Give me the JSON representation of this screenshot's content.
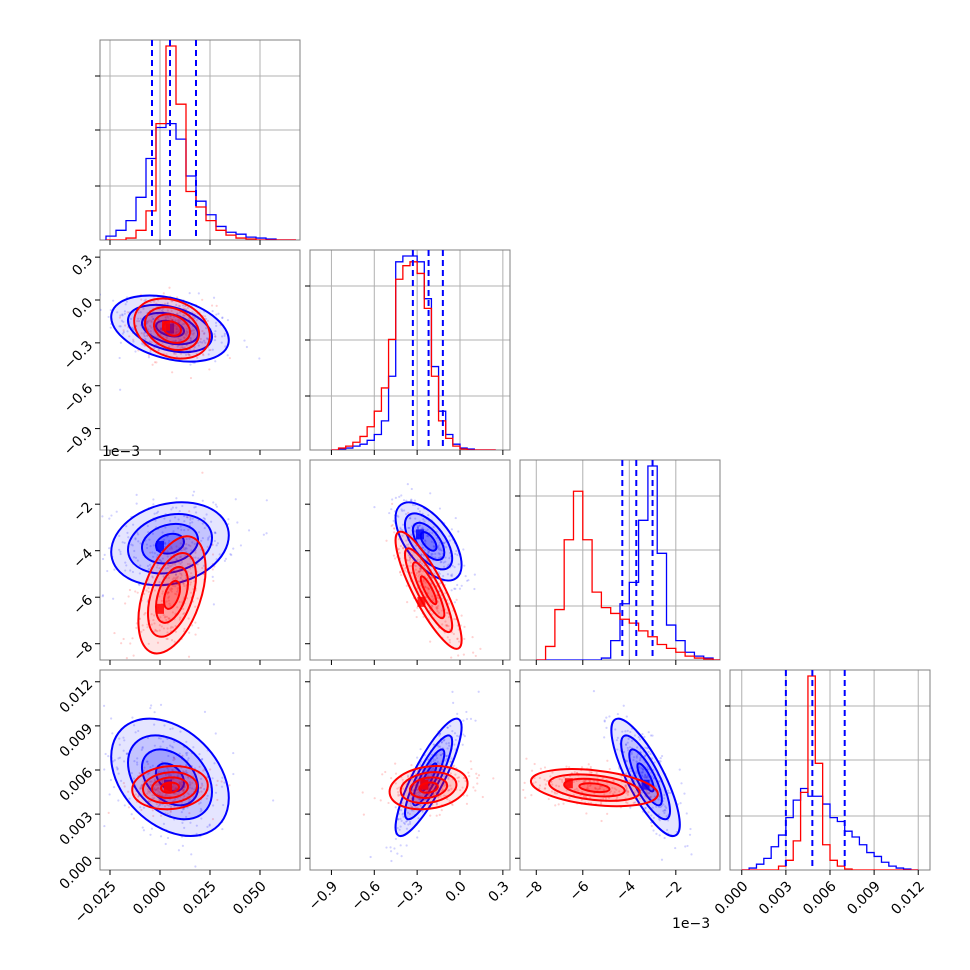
{
  "colors": {
    "blue": "#0000ff",
    "red": "#ff0000",
    "grid": "#b0b0b0",
    "frame": "#808080"
  },
  "chart_data": {
    "type": "corner",
    "title": "",
    "parameters": [
      {
        "key": "p1",
        "range": [
          -0.03,
          0.07
        ],
        "ticks": [
          -0.025,
          0.0,
          0.025,
          0.05
        ],
        "tick_labels": [
          "−0.025",
          "0.000",
          "0.025",
          "0.050"
        ],
        "offset": ""
      },
      {
        "key": "p2",
        "range": [
          -1.05,
          0.35
        ],
        "ticks": [
          -0.9,
          -0.6,
          -0.3,
          0.0,
          0.3
        ],
        "tick_labels": [
          "−0.9",
          "−0.6",
          "−0.3",
          "0.0",
          "0.3"
        ],
        "offset": ""
      },
      {
        "key": "p3",
        "range": [
          -8.7,
          -0.1
        ],
        "ticks": [
          -8,
          -6,
          -4,
          -2
        ],
        "tick_labels": [
          "−8",
          "−6",
          "−4",
          "−2"
        ],
        "offset": "1e−3"
      },
      {
        "key": "p4",
        "range": [
          -0.0008,
          0.0128
        ],
        "ticks": [
          0.0,
          0.003,
          0.006,
          0.009,
          0.012
        ],
        "tick_labels": [
          "0.000",
          "0.003",
          "0.006",
          "0.009",
          "0.012"
        ],
        "offset": ""
      }
    ],
    "series": [
      {
        "color": "#0000ff",
        "means": [
          0.005,
          -0.22,
          -3.7,
          0.0048
        ],
        "sigmas": [
          0.014,
          0.11,
          0.85,
          0.0019
        ],
        "quantiles": [
          [
            -0.004,
            0.005,
            0.018
          ],
          [
            -0.33,
            -0.22,
            -0.12
          ],
          [
            -4.3,
            -3.7,
            -3.0
          ],
          [
            0.003,
            0.0048,
            0.007
          ]
        ]
      },
      {
        "color": "#ff0000",
        "means": [
          0.006,
          -0.2,
          -5.6,
          0.0047
        ],
        "sigmas": [
          0.009,
          0.1,
          1.3,
          0.0007
        ]
      }
    ],
    "histograms": [
      {
        "param": "p1",
        "bins": [
          -0.027,
          -0.022,
          -0.017,
          -0.012,
          -0.007,
          -0.002,
          0.003,
          0.008,
          0.013,
          0.018,
          0.023,
          0.028,
          0.033,
          0.038,
          0.043,
          0.048,
          0.053,
          0.058,
          0.063,
          0.068
        ],
        "blue": [
          0.02,
          0.05,
          0.1,
          0.22,
          0.42,
          0.58,
          0.6,
          0.52,
          0.33,
          0.2,
          0.13,
          0.07,
          0.04,
          0.03,
          0.015,
          0.01,
          0.005,
          0,
          0
        ],
        "red": [
          0,
          0,
          0.01,
          0.05,
          0.15,
          0.6,
          1.0,
          0.7,
          0.25,
          0.17,
          0.1,
          0.05,
          0.025,
          0.01,
          0.005,
          0,
          0,
          0,
          0
        ]
      },
      {
        "param": "p2",
        "bins": [
          -0.9,
          -0.85,
          -0.8,
          -0.75,
          -0.7,
          -0.65,
          -0.6,
          -0.55,
          -0.5,
          -0.45,
          -0.4,
          -0.35,
          -0.3,
          -0.25,
          -0.2,
          -0.15,
          -0.1,
          -0.05,
          0.0,
          0.05,
          0.1,
          0.15,
          0.2,
          0.25
        ],
        "blue": [
          0,
          0.005,
          0.01,
          0.02,
          0.03,
          0.05,
          0.08,
          0.15,
          0.38,
          0.97,
          1.0,
          1.0,
          0.97,
          0.78,
          0.43,
          0.2,
          0.08,
          0.03,
          0.01,
          0.005,
          0,
          0,
          0
        ],
        "red": [
          0,
          0.01,
          0.02,
          0.04,
          0.07,
          0.12,
          0.2,
          0.32,
          0.57,
          0.88,
          0.95,
          0.97,
          0.91,
          0.73,
          0.38,
          0.15,
          0.06,
          0.02,
          0.005,
          0,
          0,
          0,
          0
        ]
      },
      {
        "param": "p3",
        "bins": [
          -8.0,
          -7.6,
          -7.2,
          -6.8,
          -6.4,
          -6.0,
          -5.6,
          -5.2,
          -4.8,
          -4.4,
          -4.0,
          -3.6,
          -3.2,
          -2.8,
          -2.4,
          -2.0,
          -1.6,
          -1.2,
          -0.8,
          -0.4,
          0.0
        ],
        "blue": [
          0,
          0,
          0,
          0,
          0,
          0,
          0,
          0.01,
          0.1,
          0.29,
          0.4,
          0.72,
          1.0,
          0.55,
          0.18,
          0.1,
          0.04,
          0.02,
          0.01,
          0
        ],
        "red": [
          0,
          0.07,
          0.26,
          0.62,
          0.87,
          0.62,
          0.35,
          0.27,
          0.24,
          0.21,
          0.19,
          0.15,
          0.12,
          0.08,
          0.06,
          0.04,
          0.02,
          0.01,
          0.005,
          0
        ]
      },
      {
        "param": "p4",
        "bins": [
          0.0,
          0.0005,
          0.001,
          0.0015,
          0.002,
          0.0025,
          0.003,
          0.0035,
          0.004,
          0.0045,
          0.005,
          0.0055,
          0.006,
          0.0065,
          0.007,
          0.0075,
          0.008,
          0.0085,
          0.009,
          0.0095,
          0.01,
          0.0105,
          0.011,
          0.0115,
          0.012
        ],
        "blue": [
          0,
          0.01,
          0.03,
          0.06,
          0.12,
          0.18,
          0.27,
          0.36,
          0.42,
          0.38,
          0.38,
          0.34,
          0.27,
          0.25,
          0.2,
          0.17,
          0.13,
          0.09,
          0.07,
          0.04,
          0.02,
          0.01,
          0.005,
          0
        ],
        "red": [
          0,
          0,
          0,
          0,
          0,
          0.02,
          0.05,
          0.15,
          0.4,
          1.0,
          0.55,
          0.13,
          0.05,
          0.02,
          0.005,
          0,
          0,
          0,
          0,
          0,
          0,
          0,
          0,
          0
        ]
      }
    ],
    "panels_2d": [
      {
        "x": "p1",
        "y": "p2",
        "blue": {
          "center": [
            0.005,
            -0.2
          ],
          "peak": [
            0.005,
            -0.2
          ],
          "width": [
            0.014,
            0.11
          ],
          "corr": -0.35
        },
        "red": {
          "center": [
            0.006,
            -0.2
          ],
          "peak": [
            0.003,
            -0.18
          ],
          "width": [
            0.009,
            0.1
          ],
          "corr": -0.25
        }
      },
      {
        "x": "p1",
        "y": "p3",
        "blue": {
          "center": [
            0.005,
            -3.7
          ],
          "peak": [
            0.0,
            -3.8
          ],
          "width": [
            0.014,
            0.85
          ],
          "corr": 0.2
        },
        "red": {
          "center": [
            0.006,
            -5.9
          ],
          "peak": [
            0.0,
            -6.5
          ],
          "width": [
            0.008,
            1.2
          ],
          "corr": 0.45
        }
      },
      {
        "x": "p1",
        "y": "p4",
        "blue": {
          "center": [
            0.005,
            0.0055
          ],
          "peak": [
            0.004,
            0.005
          ],
          "width": [
            0.014,
            0.0019
          ],
          "corr": -0.35
        },
        "red": {
          "center": [
            0.005,
            0.0048
          ],
          "peak": [
            0.004,
            0.0048
          ],
          "width": [
            0.009,
            0.0007
          ],
          "corr": 0.1
        }
      },
      {
        "x": "p2",
        "y": "p3",
        "blue": {
          "center": [
            -0.22,
            -3.6
          ],
          "peak": [
            -0.28,
            -3.3
          ],
          "width": [
            0.11,
            0.8
          ],
          "corr": -0.6
        },
        "red": {
          "center": [
            -0.22,
            -5.7
          ],
          "peak": [
            -0.27,
            -6.2
          ],
          "width": [
            0.11,
            1.2
          ],
          "corr": -0.85
        }
      },
      {
        "x": "p2",
        "y": "p4",
        "blue": {
          "center": [
            -0.22,
            0.0055
          ],
          "peak": [
            -0.25,
            0.005
          ],
          "width": [
            0.11,
            0.0019
          ],
          "corr": 0.85
        },
        "red": {
          "center": [
            -0.22,
            0.0048
          ],
          "peak": [
            -0.25,
            0.005
          ],
          "width": [
            0.13,
            0.0007
          ],
          "corr": 0.2
        }
      },
      {
        "x": "p3",
        "y": "p4",
        "blue": {
          "center": [
            -3.3,
            0.0055
          ],
          "peak": [
            -3.3,
            0.005
          ],
          "width": [
            0.7,
            0.0019
          ],
          "corr": -0.8
        },
        "red": {
          "center": [
            -5.5,
            0.0048
          ],
          "peak": [
            -6.6,
            0.0051
          ],
          "width": [
            1.3,
            0.0006
          ],
          "corr": -0.35
        }
      }
    ],
    "grid": true,
    "legend": false
  }
}
